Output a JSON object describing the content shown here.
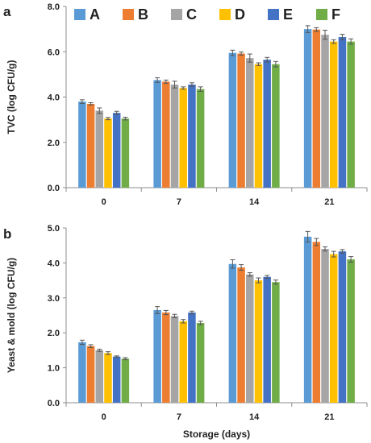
{
  "legend": [
    {
      "label": "A",
      "color": "#5B9BD5"
    },
    {
      "label": "B",
      "color": "#ED7D31"
    },
    {
      "label": "C",
      "color": "#A5A5A5"
    },
    {
      "label": "D",
      "color": "#FFC000"
    },
    {
      "label": "E",
      "color": "#4472C4"
    },
    {
      "label": "F",
      "color": "#70AD47"
    }
  ],
  "chart_data": [
    {
      "panel_label": "a",
      "type": "bar",
      "categories": [
        "0",
        "7",
        "14",
        "21"
      ],
      "ylabel": "TVC (log CFU/g)",
      "xlabel": "",
      "ylim": [
        0.0,
        8.0
      ],
      "yticks": [
        "0.0",
        "2.0",
        "4.0",
        "6.0",
        "8.0"
      ],
      "grid": false,
      "legend_position": "top",
      "series": [
        {
          "name": "A",
          "color": "#5B9BD5",
          "values": [
            3.8,
            4.75,
            5.95,
            7.0
          ],
          "errors": [
            0.08,
            0.1,
            0.12,
            0.15
          ]
        },
        {
          "name": "B",
          "color": "#ED7D31",
          "values": [
            3.7,
            4.68,
            5.92,
            6.98
          ],
          "errors": [
            0.05,
            0.07,
            0.07,
            0.08
          ]
        },
        {
          "name": "C",
          "color": "#A5A5A5",
          "values": [
            3.4,
            4.55,
            5.72,
            6.75
          ],
          "errors": [
            0.12,
            0.15,
            0.18,
            0.2
          ]
        },
        {
          "name": "D",
          "color": "#FFC000",
          "values": [
            3.05,
            4.4,
            5.45,
            6.45
          ],
          "errors": [
            0.05,
            0.05,
            0.06,
            0.08
          ]
        },
        {
          "name": "E",
          "color": "#4472C4",
          "values": [
            3.3,
            4.55,
            5.65,
            6.65
          ],
          "errors": [
            0.07,
            0.08,
            0.1,
            0.12
          ]
        },
        {
          "name": "F",
          "color": "#70AD47",
          "values": [
            3.05,
            4.35,
            5.45,
            6.45
          ],
          "errors": [
            0.06,
            0.1,
            0.12,
            0.12
          ]
        }
      ]
    },
    {
      "panel_label": "b",
      "type": "bar",
      "categories": [
        "0",
        "7",
        "14",
        "21"
      ],
      "ylabel": "Yeast & mold (log CFU/g)",
      "xlabel": "Storage (days)",
      "ylim": [
        0.0,
        5.0
      ],
      "yticks": [
        "0.0",
        "1.0",
        "2.0",
        "3.0",
        "4.0",
        "5.0"
      ],
      "grid": false,
      "series": [
        {
          "name": "A",
          "color": "#5B9BD5",
          "values": [
            1.73,
            2.65,
            3.97,
            4.75
          ],
          "errors": [
            0.06,
            0.1,
            0.12,
            0.15
          ]
        },
        {
          "name": "B",
          "color": "#ED7D31",
          "values": [
            1.62,
            2.58,
            3.87,
            4.6
          ],
          "errors": [
            0.04,
            0.06,
            0.08,
            0.1
          ]
        },
        {
          "name": "C",
          "color": "#A5A5A5",
          "values": [
            1.5,
            2.48,
            3.67,
            4.4
          ],
          "errors": [
            0.03,
            0.05,
            0.05,
            0.06
          ]
        },
        {
          "name": "D",
          "color": "#FFC000",
          "values": [
            1.42,
            2.33,
            3.5,
            4.25
          ],
          "errors": [
            0.04,
            0.05,
            0.07,
            0.08
          ]
        },
        {
          "name": "E",
          "color": "#4472C4",
          "values": [
            1.32,
            2.58,
            3.6,
            4.33
          ],
          "errors": [
            0.02,
            0.04,
            0.04,
            0.05
          ]
        },
        {
          "name": "F",
          "color": "#70AD47",
          "values": [
            1.26,
            2.28,
            3.45,
            4.1
          ],
          "errors": [
            0.03,
            0.05,
            0.06,
            0.08
          ]
        }
      ]
    }
  ]
}
